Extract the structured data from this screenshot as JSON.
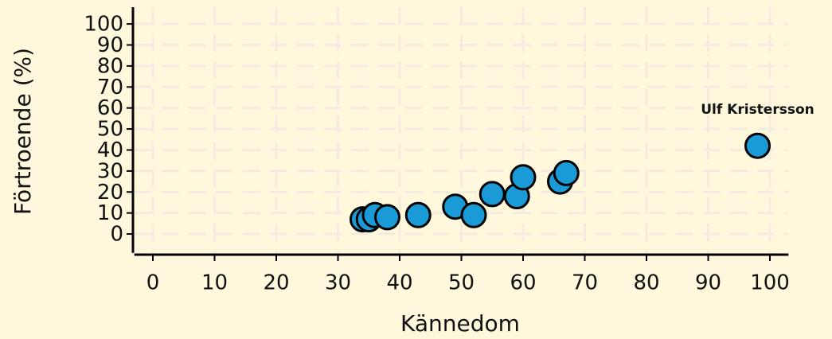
{
  "chart_data": {
    "type": "scatter",
    "x_label": "Kännedom",
    "y_label": "Förtroende (%)",
    "x": [
      34,
      35,
      36,
      38,
      43,
      49,
      52,
      55,
      59,
      60,
      66,
      67,
      98
    ],
    "y": [
      7,
      7,
      9,
      8,
      9,
      13,
      9,
      19,
      18,
      27,
      25,
      29,
      42
    ],
    "color": "#1a9bd7",
    "edge_color": "#000000",
    "annotations": [
      {
        "text": "Ulf Kristersson",
        "x": 98,
        "y": 42
      }
    ],
    "xlim": [
      -3,
      103
    ],
    "ylim": [
      -9,
      108
    ],
    "xticks": [
      0,
      10,
      20,
      30,
      40,
      50,
      60,
      70,
      80,
      90,
      100
    ],
    "yticks": [
      0,
      10,
      20,
      30,
      40,
      50,
      60,
      70,
      80,
      90,
      100
    ],
    "grid": true
  }
}
